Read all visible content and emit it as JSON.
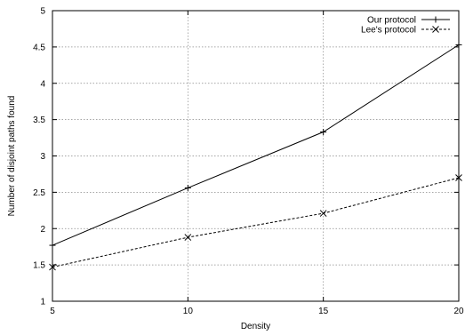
{
  "chart_data": {
    "type": "line",
    "title": "",
    "xlabel": "Density",
    "ylabel": "Number of disjoint paths found",
    "xlim": [
      5,
      20
    ],
    "ylim": [
      1,
      5
    ],
    "x_ticks": [
      5,
      10,
      15,
      20
    ],
    "y_ticks": [
      1,
      1.5,
      2,
      2.5,
      3,
      3.5,
      4,
      4.5,
      5
    ],
    "x_tick_labels": [
      "5",
      "10",
      "15",
      "20"
    ],
    "y_tick_labels": [
      "1",
      "1.5",
      "2",
      "2.5",
      "3",
      "3.5",
      "4",
      "4.5",
      "5"
    ],
    "grid": true,
    "legend_position": "top-right",
    "series": [
      {
        "name": "Our protocol",
        "line_style": "solid",
        "marker": "plus",
        "color": "#000000",
        "x": [
          5,
          10,
          15,
          20
        ],
        "y": [
          1.77,
          2.56,
          3.33,
          4.53
        ]
      },
      {
        "name": "Lee's protocol",
        "line_style": "dashed",
        "marker": "cross",
        "color": "#000000",
        "x": [
          5,
          10,
          15,
          20
        ],
        "y": [
          1.47,
          1.88,
          2.21,
          2.7
        ]
      }
    ]
  }
}
